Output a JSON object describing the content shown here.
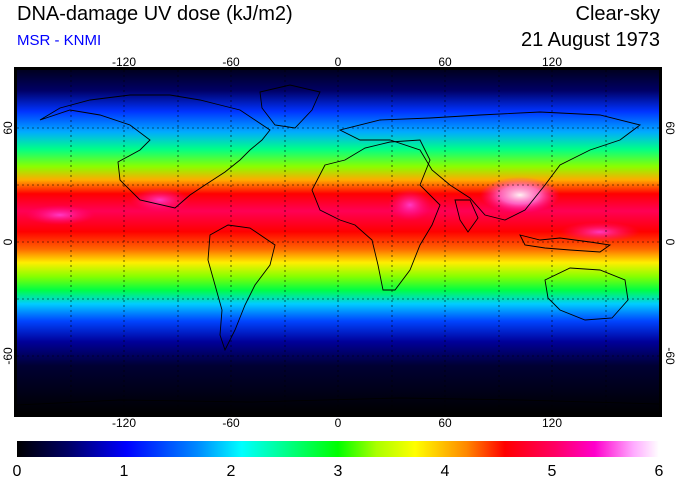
{
  "header": {
    "title": "DNA-damage UV dose (kJ/m2)",
    "source": "MSR - KNMI",
    "condition": "Clear-sky",
    "date": "21 August 1973"
  },
  "map": {
    "longitude_ticks": [
      "-120",
      "-60",
      "0",
      "60",
      "120"
    ],
    "latitude_ticks": [
      "60",
      "0",
      "-60"
    ],
    "graticule_lon": [
      -150,
      -120,
      -90,
      -60,
      -30,
      0,
      30,
      60,
      90,
      120,
      150
    ],
    "graticule_lat": [
      60,
      30,
      0,
      -30,
      -60
    ]
  },
  "colorbar": {
    "ticks": [
      "0",
      "1",
      "2",
      "3",
      "4",
      "5",
      "6"
    ],
    "colors": [
      "#000000",
      "#000066",
      "#0000ff",
      "#0088ff",
      "#00ffff",
      "#00ff88",
      "#00ff00",
      "#88ff00",
      "#ffff00",
      "#ff8800",
      "#ff0000",
      "#ff0066",
      "#ff00aa",
      "#ff66ff",
      "#ffccff",
      "#ffffff"
    ]
  },
  "colors": {
    "source_text": "#0000ff",
    "title_text": "#000000"
  }
}
